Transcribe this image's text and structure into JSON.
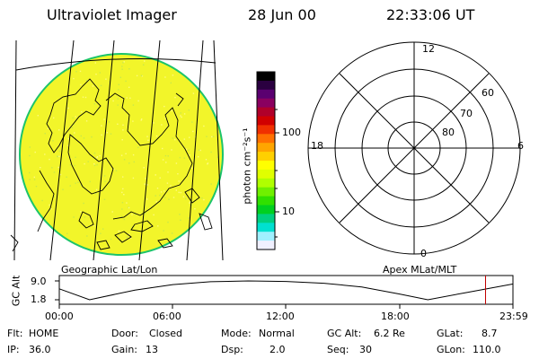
{
  "header": {
    "instrument": "Ultraviolet Imager",
    "date": "28 Jun 00",
    "time": "22:33:06 UT"
  },
  "colorbar": {
    "unit": "photon cm⁻²s⁻¹",
    "ticks": [
      "100",
      "10"
    ],
    "colors": [
      "#000000",
      "#2a0040",
      "#5a0070",
      "#8a0060",
      "#b0002a",
      "#d10000",
      "#f03000",
      "#ff7000",
      "#ffa500",
      "#ffd000",
      "#ffff00",
      "#e0ff00",
      "#b0ff00",
      "#70f000",
      "#30e000",
      "#00d020",
      "#00d080",
      "#00e0d0",
      "#a0f0ff",
      "#f0f0ff"
    ]
  },
  "geo_panel": {
    "label": "Geographic Lat/Lon",
    "fill": "#f2f52a"
  },
  "polar_panel": {
    "label": "Apex MLat/MLT",
    "mlt_labels": [
      "12",
      "18",
      "6",
      "0"
    ],
    "lat_labels": [
      "60",
      "70",
      "80"
    ]
  },
  "altitude_plot": {
    "ylabel": "GC Alt",
    "yticks": [
      "9.0",
      "1.8"
    ],
    "xticks": [
      "00:00",
      "06:00",
      "12:00",
      "18:00",
      "23:59"
    ],
    "x_hours": [
      0,
      1.6,
      4,
      6,
      8,
      10,
      12,
      14,
      16,
      18,
      19.5,
      21.5,
      23.98
    ],
    "alt_re": [
      6.0,
      1.8,
      5.5,
      7.6,
      8.7,
      9.0,
      8.8,
      8.1,
      6.7,
      4.0,
      1.8,
      4.5,
      7.8
    ],
    "current_hour": 22.55,
    "marker_color": "#c00000"
  },
  "info": {
    "row1": [
      {
        "label": "Flt:",
        "value": "HOME"
      },
      {
        "label": "Door:",
        "value": "Closed"
      },
      {
        "label": "Mode:",
        "value": "Normal"
      },
      {
        "label": "GC Alt:",
        "value": "6.2 Re"
      },
      {
        "label": "GLat:",
        "value": "8.7"
      }
    ],
    "row2": [
      {
        "label": "IP:",
        "value": "36.0"
      },
      {
        "label": "Gain:",
        "value": "13"
      },
      {
        "label": "Dsp:",
        "value": "2.0"
      },
      {
        "label": "Seq:",
        "value": "30"
      },
      {
        "label": "GLon:",
        "value": "110.0"
      }
    ]
  }
}
